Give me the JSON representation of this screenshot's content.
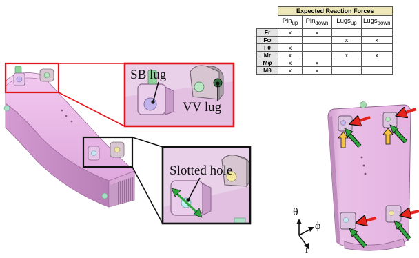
{
  "table": {
    "title": "Expected Reaction Forces",
    "columns": [
      "Pin",
      "Pin",
      "Lugs",
      "Lugs"
    ],
    "column_subscripts": [
      "up",
      "down",
      "up",
      "down"
    ],
    "rows": [
      {
        "label": "Fr",
        "cells": [
          "x",
          "x",
          "",
          ""
        ]
      },
      {
        "label": "Fφ",
        "cells": [
          "",
          "",
          "x",
          "x"
        ]
      },
      {
        "label": "Fθ",
        "cells": [
          "x",
          "",
          "",
          ""
        ]
      },
      {
        "label": "Mr",
        "cells": [
          "x",
          "",
          "x",
          "x"
        ]
      },
      {
        "label": "Mφ",
        "cells": [
          "x",
          "x",
          "",
          ""
        ]
      },
      {
        "label": "Mθ",
        "cells": [
          "x",
          "x",
          "",
          ""
        ]
      }
    ]
  },
  "callouts": {
    "sb_lug": "SB lug",
    "vv_lug": "VV lug",
    "slotted_hole": "Slotted hole"
  },
  "axes": {
    "theta": "θ",
    "phi": "ϕ",
    "r": "r"
  },
  "colors": {
    "part_fill": "#e9b9e6",
    "part_shade": "#c98fc8",
    "red_box": "#e2141b",
    "black_box": "#111111",
    "red_arrow": "#e3231c",
    "green_arrow": "#2fa43c",
    "yellow_arrow": "#f6c342",
    "table_title_bg": "#ece6b8"
  }
}
